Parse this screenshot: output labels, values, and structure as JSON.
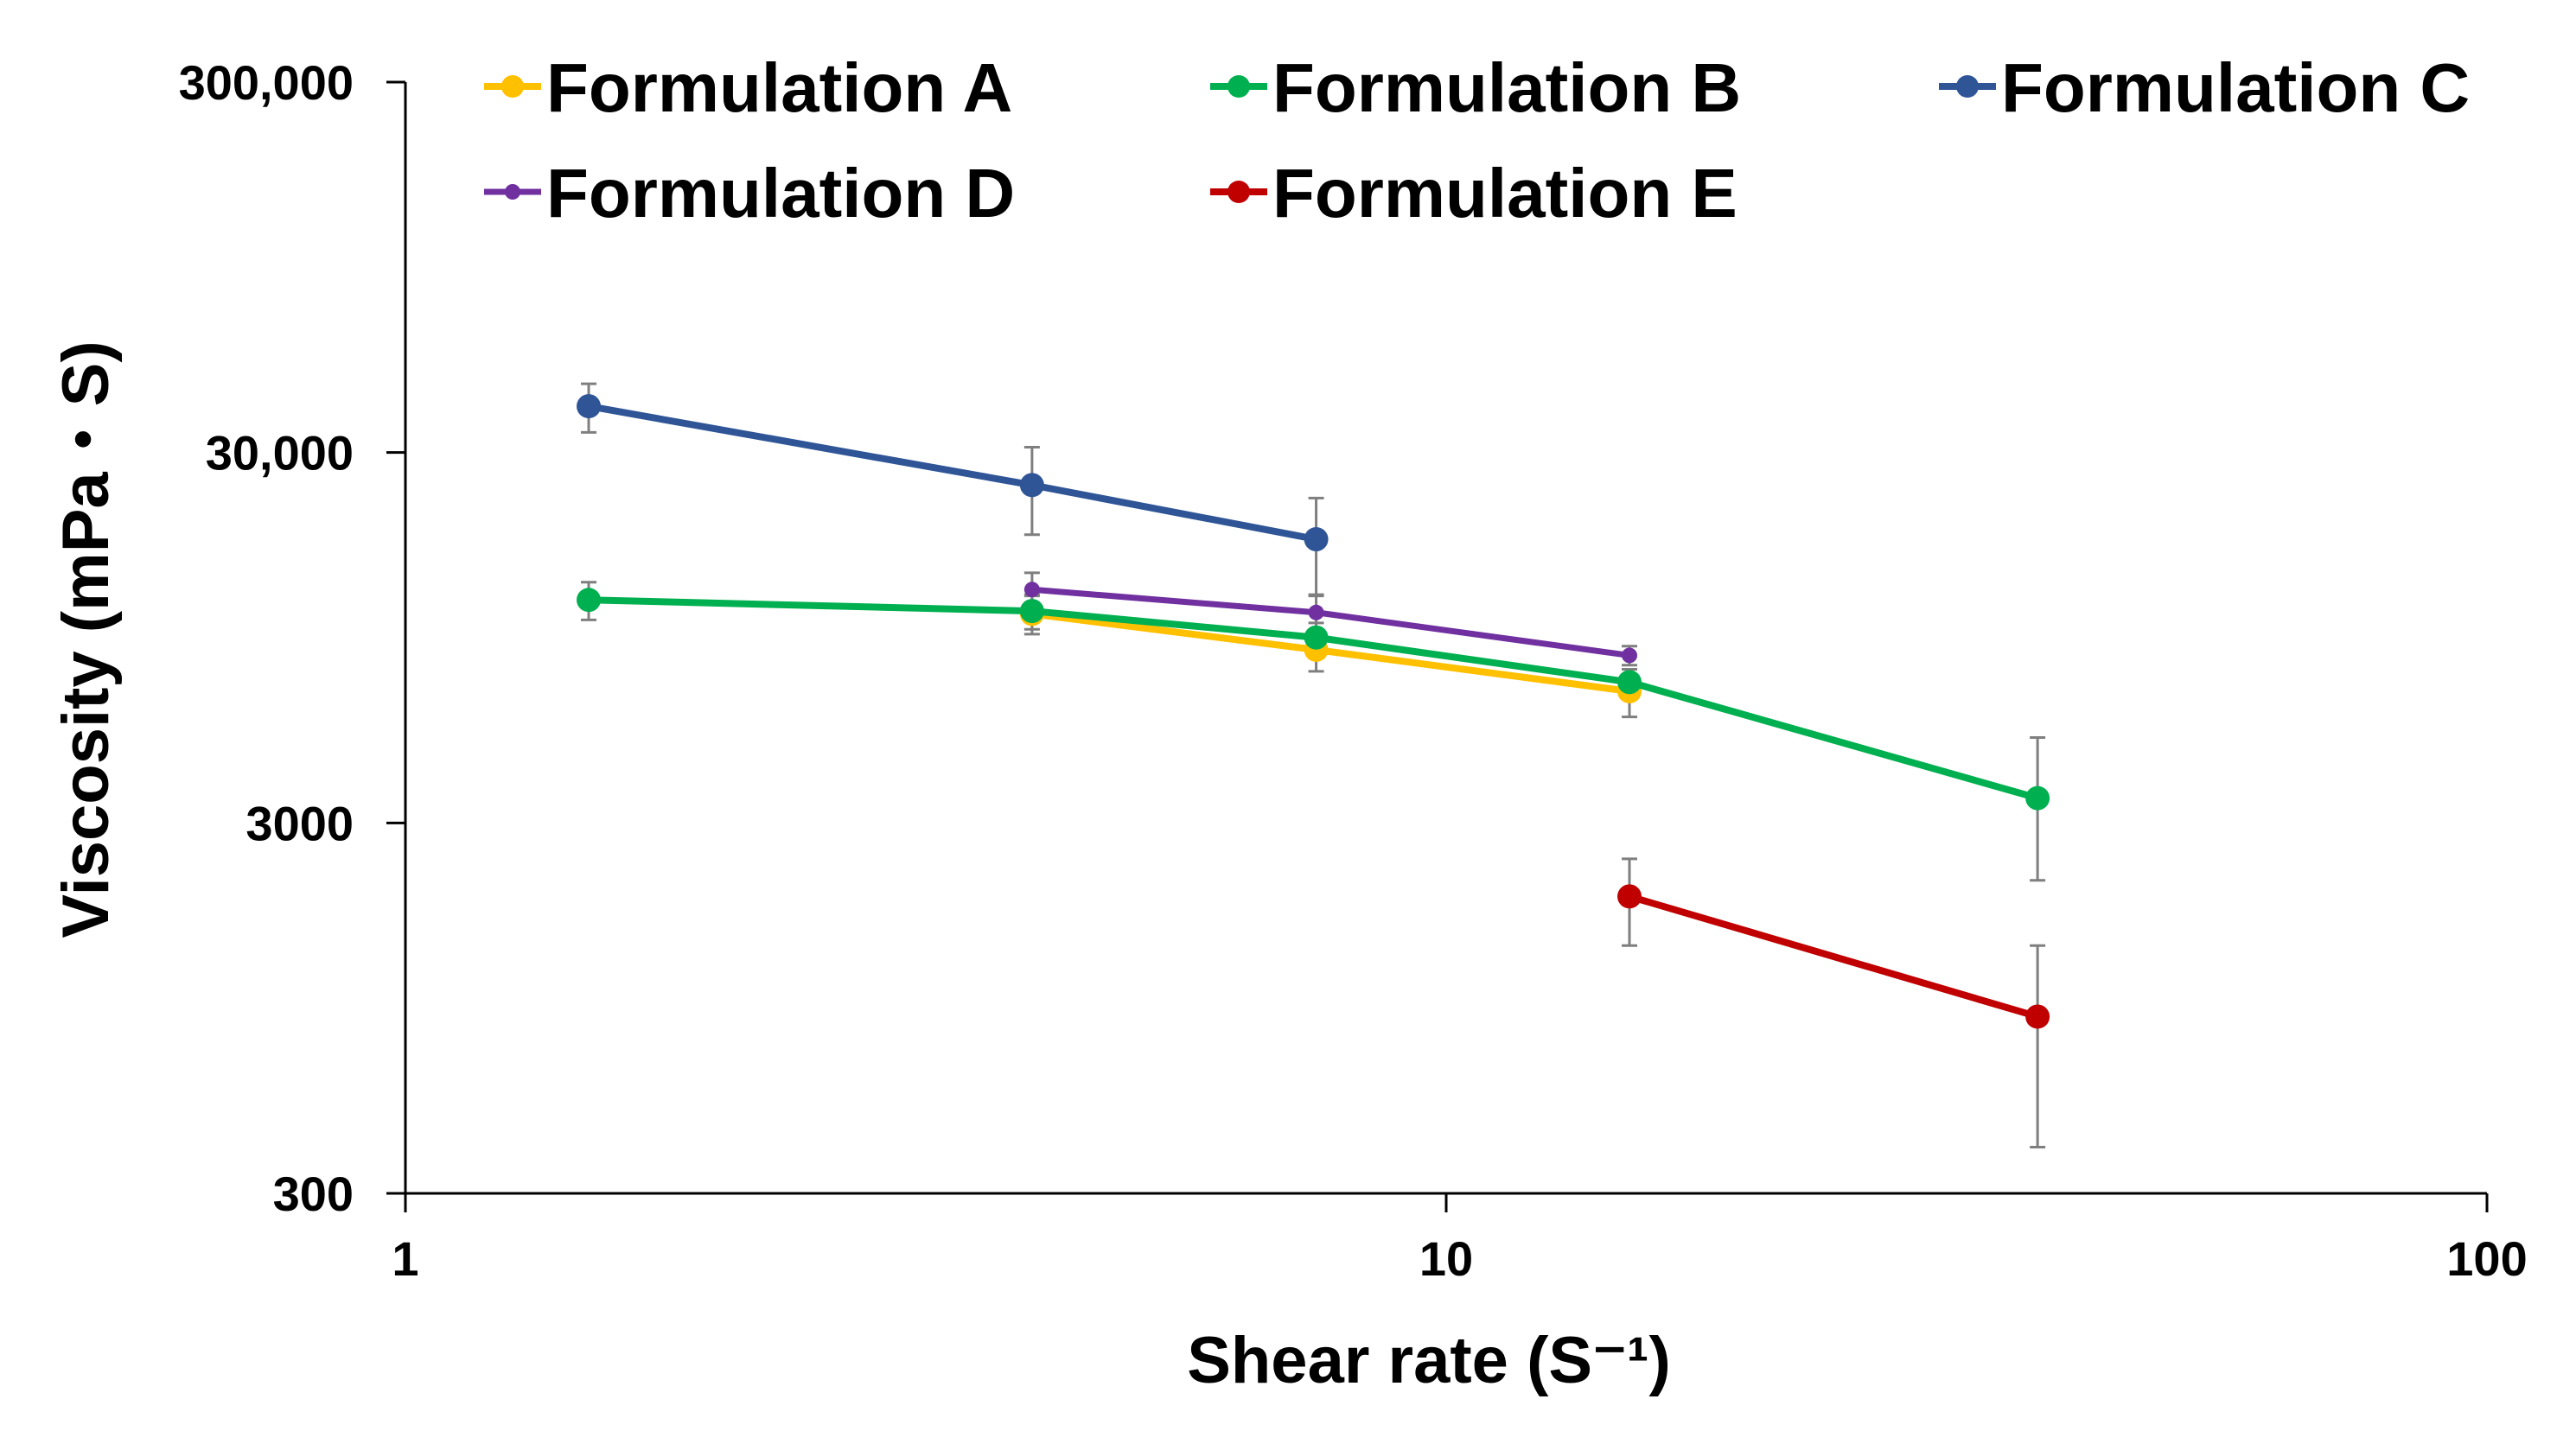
{
  "chart_data": {
    "type": "line",
    "title": "",
    "xlabel": "Shear rate (S⁻¹)",
    "ylabel": "Viscosity (mPa・S)",
    "x_scale": "log",
    "y_scale": "log",
    "xlim": [
      1,
      100
    ],
    "ylim": [
      300,
      300000
    ],
    "x_ticks": [
      {
        "value": 1,
        "label": "1"
      },
      {
        "value": 10,
        "label": "10"
      },
      {
        "value": 100,
        "label": "100"
      }
    ],
    "y_ticks": [
      {
        "value": 300,
        "label": "300"
      },
      {
        "value": 3000,
        "label": "3000"
      },
      {
        "value": 30000,
        "label": "30,000"
      },
      {
        "value": 300000,
        "label": "300,000"
      }
    ],
    "legend_position": "top",
    "series": [
      {
        "name": "Formulation A",
        "color": "#FFC000",
        "points": [
          {
            "x": 4,
            "y": 11000,
            "err_lo": 9700,
            "err_hi": 12300
          },
          {
            "x": 7.5,
            "y": 8800,
            "err_lo": 7700,
            "err_hi": 9900
          },
          {
            "x": 15,
            "y": 6800,
            "err_lo": 5800,
            "err_hi": 7800
          }
        ]
      },
      {
        "name": "Formulation B",
        "color": "#00B050",
        "points": [
          {
            "x": 1.5,
            "y": 12000,
            "err_lo": 10600,
            "err_hi": 13400
          },
          {
            "x": 4,
            "y": 11200,
            "err_lo": 10000,
            "err_hi": 12400
          },
          {
            "x": 7.5,
            "y": 9500,
            "err_lo": 8600,
            "err_hi": 10400
          },
          {
            "x": 15,
            "y": 7200,
            "err_lo": 6600,
            "err_hi": 7800
          },
          {
            "x": 37,
            "y": 3500,
            "err_lo": 2100,
            "err_hi": 5100
          }
        ]
      },
      {
        "name": "Formulation C",
        "color": "#2F5597",
        "points": [
          {
            "x": 1.5,
            "y": 40000,
            "err_lo": 34000,
            "err_hi": 46000
          },
          {
            "x": 4,
            "y": 24500,
            "err_lo": 18000,
            "err_hi": 31000
          },
          {
            "x": 7.5,
            "y": 17500,
            "err_lo": 12400,
            "err_hi": 22600
          }
        ]
      },
      {
        "name": "Formulation D",
        "color": "#7030A0",
        "points": [
          {
            "x": 4,
            "y": 12800,
            "err_lo": 11400,
            "err_hi": 14200
          },
          {
            "x": 7.5,
            "y": 11100,
            "err_lo": 9900,
            "err_hi": 12300
          },
          {
            "x": 15,
            "y": 8500,
            "err_lo": 8000,
            "err_hi": 9000
          }
        ]
      },
      {
        "name": "Formulation E",
        "color": "#C00000",
        "points": [
          {
            "x": 15,
            "y": 1900,
            "err_lo": 1400,
            "err_hi": 2400
          },
          {
            "x": 37,
            "y": 900,
            "err_lo": 400,
            "err_hi": 1400
          }
        ]
      }
    ]
  }
}
